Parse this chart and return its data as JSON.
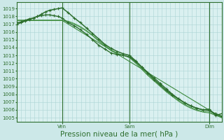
{
  "bg_color": "#cce8e8",
  "plot_bg_color": "#daf0f0",
  "grid_color": "#aad4d4",
  "dark_green": "#2d6e2d",
  "mid_green": "#3d7a3d",
  "ylim": [
    1004.5,
    1019.8
  ],
  "yticks": [
    1005,
    1006,
    1007,
    1008,
    1009,
    1010,
    1011,
    1012,
    1013,
    1014,
    1015,
    1016,
    1017,
    1018,
    1019
  ],
  "xlabel": "Pression niveau de la mer( hPa )",
  "day_labels": [
    "Ven",
    "Sam",
    "Dim"
  ],
  "day_positions": [
    0.22,
    0.55,
    0.94
  ],
  "tick_fontsize": 5.0,
  "xlabel_fontsize": 7.5,
  "n_xgrid": 48,
  "series": [
    {
      "x": [
        0.0,
        0.02,
        0.04,
        0.06,
        0.08,
        0.1,
        0.12,
        0.14,
        0.16,
        0.18,
        0.2,
        0.22,
        0.25,
        0.28,
        0.31,
        0.34,
        0.37,
        0.4,
        0.43,
        0.46,
        0.49,
        0.52,
        0.55,
        0.58,
        0.61,
        0.64,
        0.67,
        0.7,
        0.73,
        0.76,
        0.79,
        0.82,
        0.85,
        0.88,
        0.91,
        0.94,
        0.97,
        1.0
      ],
      "y": [
        1017.2,
        1017.3,
        1017.5,
        1017.7,
        1017.8,
        1018.0,
        1018.1,
        1018.2,
        1018.2,
        1018.1,
        1018.0,
        1017.8,
        1017.2,
        1016.8,
        1016.3,
        1015.7,
        1015.0,
        1014.3,
        1013.8,
        1013.3,
        1013.1,
        1013.0,
        1012.8,
        1012.2,
        1011.5,
        1010.8,
        1010.1,
        1009.4,
        1008.7,
        1008.0,
        1007.4,
        1006.9,
        1006.5,
        1006.2,
        1006.0,
        1006.1,
        1005.3,
        1005.5
      ],
      "color": "#2d6e2d",
      "lw": 1.0,
      "marker": "+",
      "ms": 3.0,
      "zorder": 4
    },
    {
      "x": [
        0.0,
        0.02,
        0.04,
        0.06,
        0.08,
        0.1,
        0.12,
        0.14,
        0.16,
        0.18,
        0.2,
        0.22,
        0.25,
        0.28,
        0.31,
        0.34,
        0.37,
        0.4,
        0.43,
        0.46,
        0.49,
        0.52,
        0.55,
        0.58,
        0.61,
        0.64,
        0.67,
        0.7,
        0.73,
        0.76,
        0.79,
        0.82,
        0.85,
        0.88,
        0.91,
        0.94,
        0.97,
        1.0
      ],
      "y": [
        1017.0,
        1017.2,
        1017.4,
        1017.6,
        1017.8,
        1018.0,
        1018.3,
        1018.6,
        1018.8,
        1018.9,
        1019.0,
        1019.1,
        1018.5,
        1017.8,
        1017.2,
        1016.5,
        1015.8,
        1015.1,
        1014.4,
        1013.9,
        1013.5,
        1013.2,
        1013.0,
        1012.3,
        1011.5,
        1010.7,
        1009.9,
        1009.2,
        1008.5,
        1007.9,
        1007.4,
        1006.9,
        1006.5,
        1006.2,
        1006.0,
        1005.9,
        1005.5,
        1005.2
      ],
      "color": "#2d6e2d",
      "lw": 1.1,
      "marker": "+",
      "ms": 3.0,
      "zorder": 4
    },
    {
      "x": [
        0.0,
        0.02,
        0.04,
        0.06,
        0.08,
        0.1,
        0.12,
        0.14,
        0.16,
        0.18,
        0.2,
        0.22,
        0.25,
        0.28,
        0.31,
        0.34,
        0.37,
        0.4,
        0.43,
        0.46,
        0.49,
        0.52,
        0.55,
        0.58,
        0.61,
        0.64,
        0.67,
        0.7,
        0.73,
        0.76,
        0.79,
        0.82,
        0.85,
        0.88,
        0.91,
        0.94,
        0.97,
        1.0
      ],
      "y": [
        1017.5,
        1017.5,
        1017.5,
        1017.5,
        1017.5,
        1017.5,
        1017.5,
        1017.5,
        1017.5,
        1017.5,
        1017.5,
        1017.5,
        1017.3,
        1017.0,
        1016.6,
        1016.1,
        1015.5,
        1014.8,
        1014.2,
        1013.6,
        1013.2,
        1013.0,
        1012.7,
        1012.0,
        1011.2,
        1010.4,
        1009.7,
        1009.0,
        1008.3,
        1007.7,
        1007.1,
        1006.6,
        1006.2,
        1005.9,
        1005.7,
        1005.6,
        1005.3,
        1005.0
      ],
      "color": "#3d8a3d",
      "lw": 0.7,
      "marker": null,
      "ms": 0,
      "zorder": 3
    },
    {
      "x": [
        0.0,
        0.02,
        0.04,
        0.06,
        0.08,
        0.1,
        0.12,
        0.14,
        0.16,
        0.18,
        0.2,
        0.22,
        0.25,
        0.28,
        0.31,
        0.34,
        0.37,
        0.4,
        0.43,
        0.46,
        0.49,
        0.52,
        0.55,
        0.58,
        0.61,
        0.64,
        0.67,
        0.7,
        0.73,
        0.76,
        0.79,
        0.82,
        0.85,
        0.88,
        0.91,
        0.94,
        0.97,
        1.0
      ],
      "y": [
        1017.5,
        1017.5,
        1017.5,
        1017.5,
        1017.5,
        1017.5,
        1017.5,
        1017.5,
        1017.5,
        1017.5,
        1017.5,
        1017.5,
        1017.4,
        1017.1,
        1016.7,
        1016.2,
        1015.6,
        1014.9,
        1014.3,
        1013.7,
        1013.3,
        1013.0,
        1012.8,
        1012.1,
        1011.3,
        1010.5,
        1009.8,
        1009.1,
        1008.4,
        1007.8,
        1007.2,
        1006.7,
        1006.3,
        1006.0,
        1005.8,
        1005.7,
        1005.4,
        1005.1
      ],
      "color": "#4a9a4a",
      "lw": 0.7,
      "marker": null,
      "ms": 0,
      "zorder": 3
    },
    {
      "x": [
        0.0,
        0.22,
        1.0
      ],
      "y": [
        1017.5,
        1017.5,
        1005.0
      ],
      "color": "#3d8a3d",
      "lw": 0.8,
      "marker": null,
      "ms": 0,
      "zorder": 3
    }
  ]
}
